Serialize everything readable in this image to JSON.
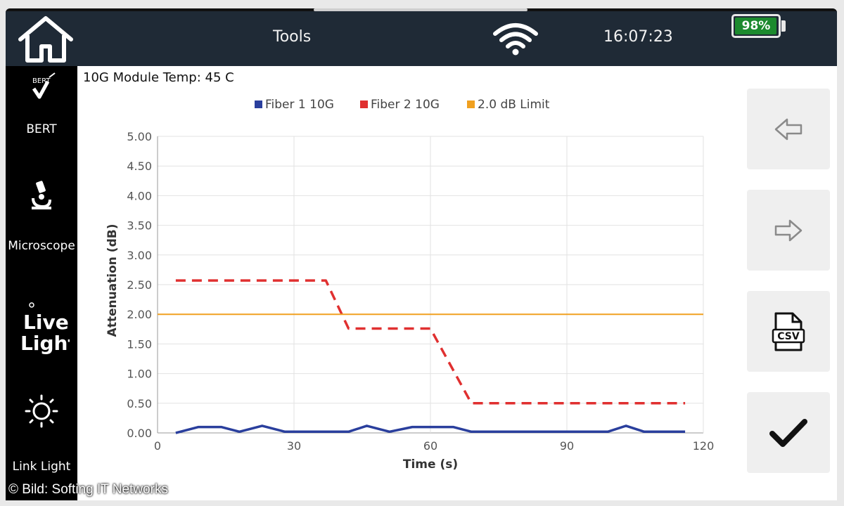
{
  "topbar": {
    "title": "Tools",
    "time": "16:07:23",
    "battery_label": "98%",
    "battery_level": 0.98
  },
  "sidebar": {
    "items": [
      {
        "label": "BERT",
        "icon": "bert-icon",
        "icon_text": "BERT"
      },
      {
        "label": "Microscope",
        "icon": "microscope-icon"
      },
      {
        "label": "Live Light",
        "icon": "live-light-icon",
        "icon_text_1": "Live",
        "icon_text_2": "Light"
      },
      {
        "label": "Link Light",
        "icon": "sun-icon"
      }
    ]
  },
  "main": {
    "module_temp": "10G Module Temp: 45 C"
  },
  "right_buttons": [
    {
      "icon": "arrow-left-icon",
      "disabled": true
    },
    {
      "icon": "arrow-right-icon",
      "disabled": true
    },
    {
      "icon": "csv-file-icon",
      "icon_text": "CSV"
    },
    {
      "icon": "checkmark-icon"
    }
  ],
  "watermark": "© Bild: Softing IT Networks",
  "chart_data": {
    "type": "line",
    "xlabel": "Time (s)",
    "ylabel": "Attenuation (dB)",
    "xlim": [
      0,
      120
    ],
    "ylim": [
      0,
      5
    ],
    "x_ticks": [
      "0",
      "30",
      "60",
      "90",
      "120"
    ],
    "y_ticks": [
      "0.00",
      "0.50",
      "1.00",
      "1.50",
      "2.00",
      "2.50",
      "3.00",
      "3.50",
      "4.00",
      "4.50",
      "5.00"
    ],
    "legend_position": "top",
    "grid": true,
    "series": [
      {
        "name": "Fiber 1 10G",
        "color": "#2a3f9d",
        "style": "solid",
        "points": [
          [
            4,
            0.0
          ],
          [
            9,
            0.1
          ],
          [
            14,
            0.1
          ],
          [
            18,
            0.02
          ],
          [
            23,
            0.12
          ],
          [
            28,
            0.02
          ],
          [
            35,
            0.02
          ],
          [
            42,
            0.02
          ],
          [
            46,
            0.12
          ],
          [
            51,
            0.02
          ],
          [
            56,
            0.1
          ],
          [
            60,
            0.1
          ],
          [
            65,
            0.1
          ],
          [
            69,
            0.02
          ],
          [
            80,
            0.02
          ],
          [
            90,
            0.02
          ],
          [
            99,
            0.02
          ],
          [
            103,
            0.12
          ],
          [
            107,
            0.02
          ],
          [
            112,
            0.02
          ],
          [
            116,
            0.02
          ]
        ]
      },
      {
        "name": "Fiber 2 10G",
        "color": "#e03030",
        "style": "dashed",
        "points": [
          [
            4,
            2.57
          ],
          [
            37,
            2.57
          ],
          [
            42,
            1.76
          ],
          [
            60,
            1.76
          ],
          [
            69,
            0.5
          ],
          [
            116,
            0.5
          ]
        ]
      },
      {
        "name": "2.0 dB Limit",
        "color": "#f0a020",
        "style": "solid",
        "points": [
          [
            0,
            2.0
          ],
          [
            120,
            2.0
          ]
        ]
      }
    ]
  }
}
